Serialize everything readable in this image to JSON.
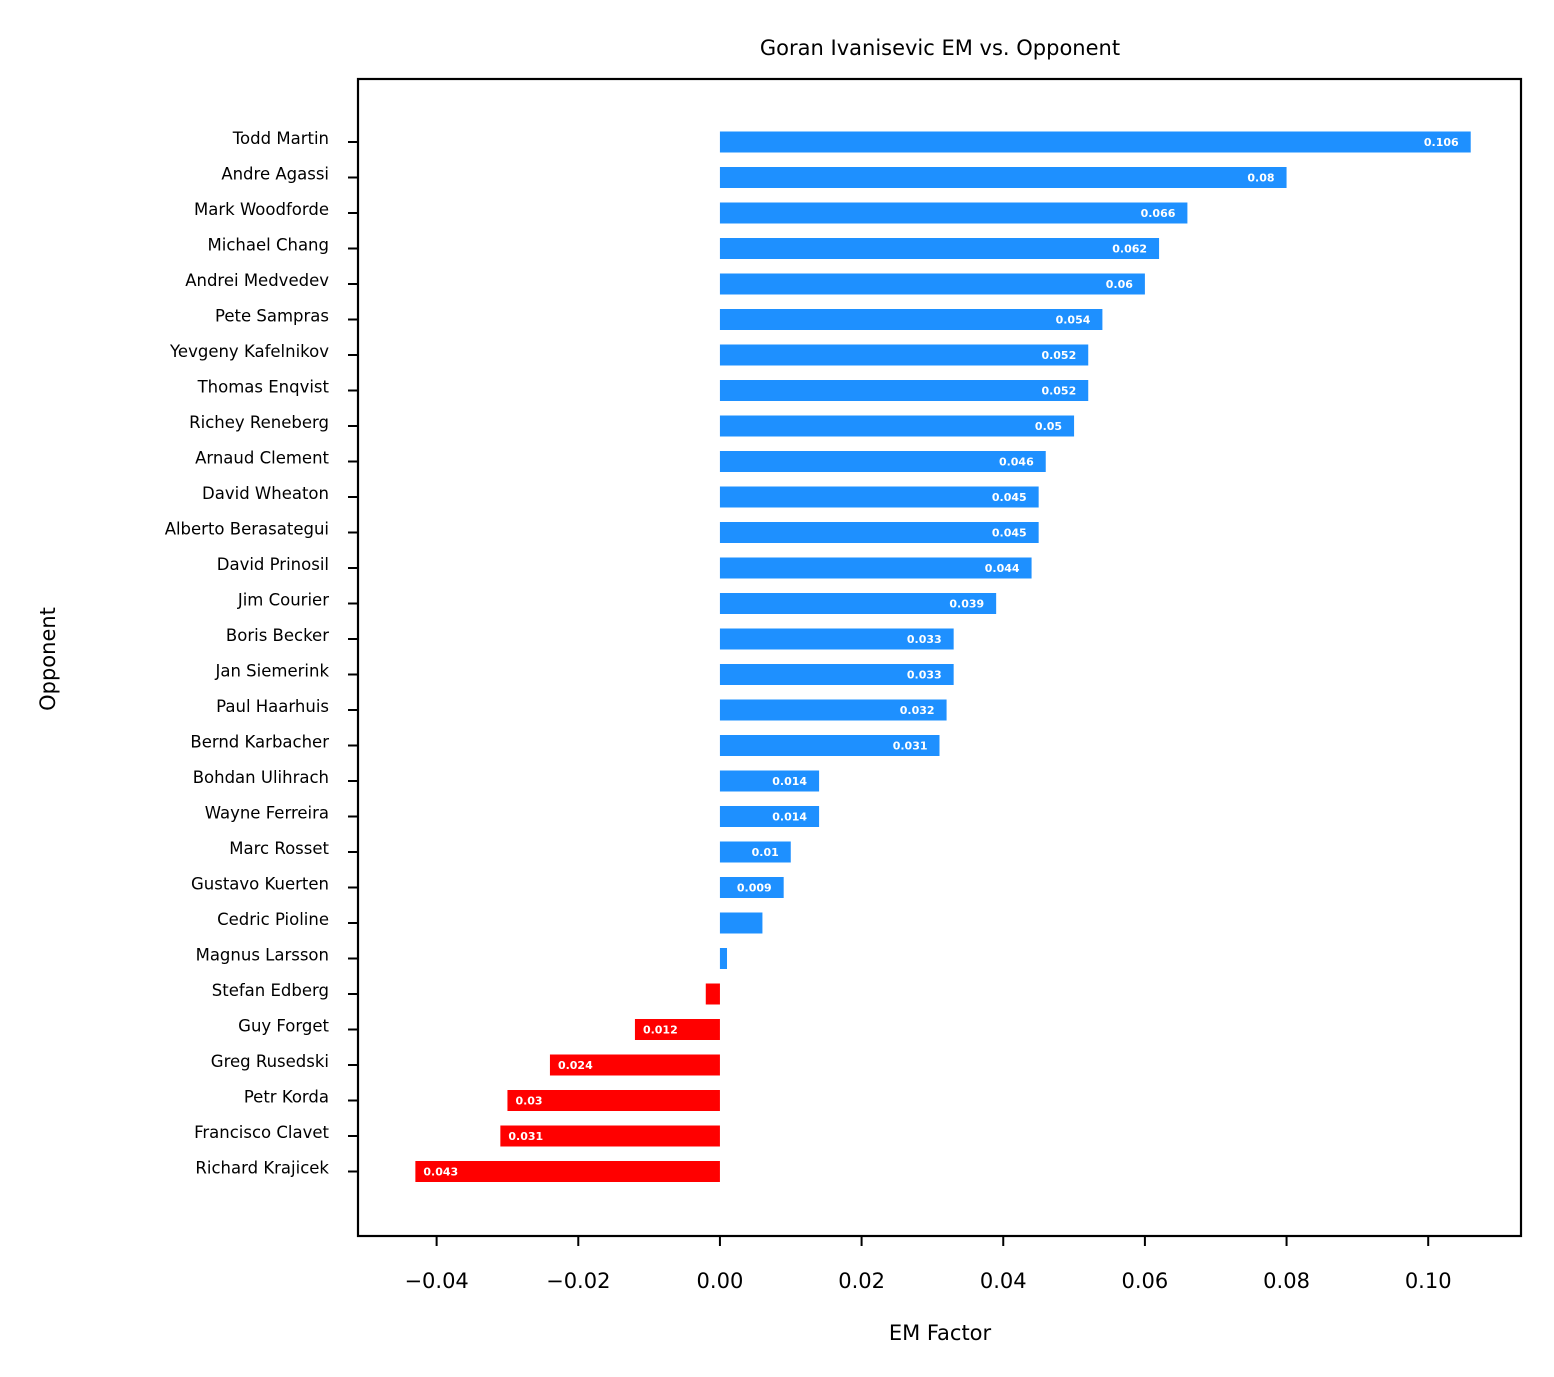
{
  "chart_data": {
    "type": "bar",
    "orientation": "horizontal",
    "title": "Goran Ivanisevic EM vs. Opponent",
    "xlabel": "EM Factor",
    "ylabel": "Opponent",
    "xlim": [
      -0.0511,
      0.1131
    ],
    "xticks": [
      -0.04,
      -0.02,
      0.0,
      0.02,
      0.04,
      0.06,
      0.08,
      0.1
    ],
    "xtick_labels": [
      "−0.04",
      "−0.02",
      "0.00",
      "0.02",
      "0.04",
      "0.06",
      "0.08",
      "0.10"
    ],
    "grid": false,
    "positive_color": "#1e90ff",
    "negative_color": "#ff0000",
    "categories": [
      "Todd Martin",
      "Andre Agassi",
      "Mark Woodforde",
      "Michael Chang",
      "Andrei Medvedev",
      "Pete Sampras",
      "Yevgeny Kafelnikov",
      "Thomas Enqvist",
      "Richey Reneberg",
      "Arnaud Clement",
      "David Wheaton",
      "Alberto Berasategui",
      "David Prinosil",
      "Jim Courier",
      "Boris Becker",
      "Jan Siemerink",
      "Paul Haarhuis",
      "Bernd Karbacher",
      "Bohdan Ulihrach",
      "Wayne Ferreira",
      "Marc Rosset",
      "Gustavo Kuerten",
      "Cedric Pioline",
      "Magnus Larsson",
      "Stefan Edberg",
      "Guy Forget",
      "Greg Rusedski",
      "Petr Korda",
      "Francisco Clavet",
      "Richard Krajicek"
    ],
    "values": [
      0.106,
      0.08,
      0.066,
      0.062,
      0.06,
      0.054,
      0.052,
      0.052,
      0.05,
      0.046,
      0.045,
      0.045,
      0.044,
      0.039,
      0.033,
      0.033,
      0.032,
      0.031,
      0.014,
      0.014,
      0.01,
      0.009,
      0.006,
      0.001,
      -0.002,
      -0.012,
      -0.024,
      -0.03,
      -0.031,
      -0.043
    ],
    "value_labels": [
      "0.106",
      "0.08",
      "0.066",
      "0.062",
      "0.06",
      "0.054",
      "0.052",
      "0.052",
      "0.05",
      "0.046",
      "0.045",
      "0.045",
      "0.044",
      "0.039",
      "0.033",
      "0.033",
      "0.032",
      "0.031",
      "0.014",
      "0.014",
      "0.01",
      "0.009",
      "",
      "",
      "",
      "0.012",
      "0.024",
      "0.03",
      "0.031",
      "0.043"
    ]
  }
}
